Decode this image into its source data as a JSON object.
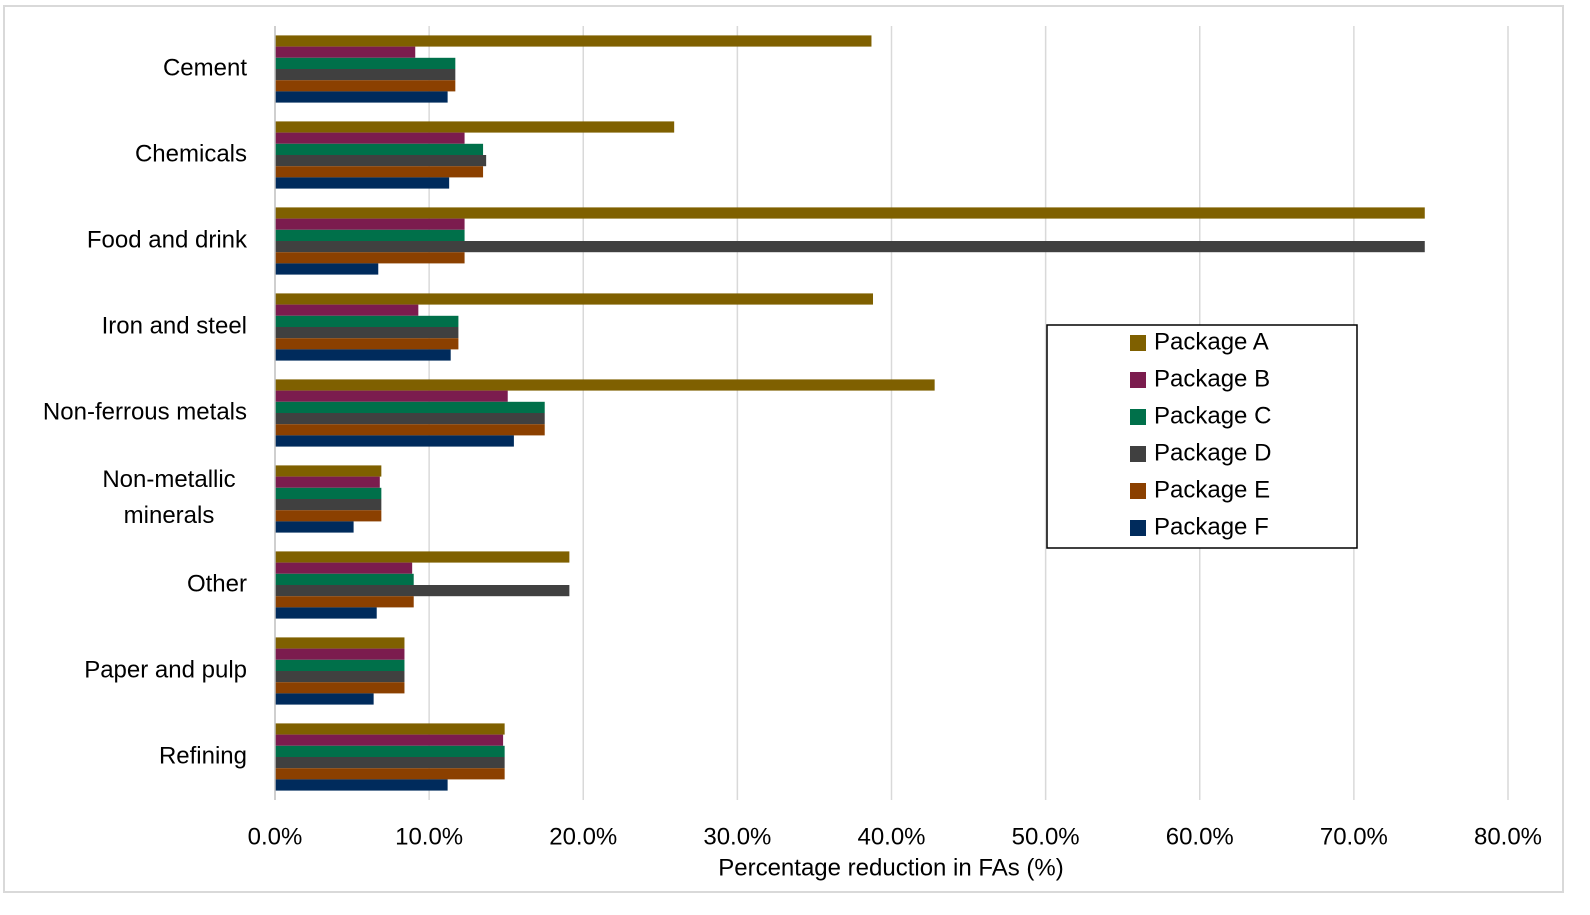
{
  "chart_data": {
    "type": "hbar",
    "x_label": "Percentage reduction in FAs (%)",
    "categories": [
      "Cement",
      "Chemicals",
      "Food and drink",
      "Iron and steel",
      "Non-ferrous metals",
      "Non-metallic minerals",
      "Other",
      "Paper and pulp",
      "Refining"
    ],
    "series": [
      {
        "name": "Package A",
        "color": "#7f6000",
        "values": [
          38.7,
          25.9,
          74.6,
          38.8,
          42.8,
          6.9,
          19.1,
          8.4,
          14.9
        ]
      },
      {
        "name": "Package B",
        "color": "#7b1c4e",
        "values": [
          9.1,
          12.3,
          12.3,
          9.3,
          15.1,
          6.8,
          8.9,
          8.4,
          14.8
        ]
      },
      {
        "name": "Package C",
        "color": "#00704a",
        "values": [
          11.7,
          13.5,
          12.3,
          11.9,
          17.5,
          6.9,
          9.0,
          8.4,
          14.9
        ]
      },
      {
        "name": "Package D",
        "color": "#404040",
        "values": [
          11.7,
          13.7,
          74.6,
          11.9,
          17.5,
          6.9,
          19.1,
          8.4,
          14.9
        ]
      },
      {
        "name": "Package E",
        "color": "#8b4000",
        "values": [
          11.7,
          13.5,
          12.3,
          11.9,
          17.5,
          6.9,
          9.0,
          8.4,
          14.9
        ]
      },
      {
        "name": "Package F",
        "color": "#002b5c",
        "values": [
          11.2,
          11.3,
          6.7,
          11.4,
          15.5,
          5.1,
          6.6,
          6.4,
          11.2
        ]
      }
    ],
    "xlim": [
      0,
      80
    ],
    "xticks": [
      {
        "value": 0,
        "label": "0.0%"
      },
      {
        "value": 10,
        "label": "10.0%"
      },
      {
        "value": 20,
        "label": "20.0%"
      },
      {
        "value": 30,
        "label": "30.0%"
      },
      {
        "value": 40,
        "label": "40.0%"
      },
      {
        "value": 50,
        "label": "50.0%"
      },
      {
        "value": 60,
        "label": "60.0%"
      },
      {
        "value": 70,
        "label": "70.0%"
      },
      {
        "value": 80,
        "label": "80.0%"
      }
    ],
    "grid": true,
    "legend": "right"
  }
}
